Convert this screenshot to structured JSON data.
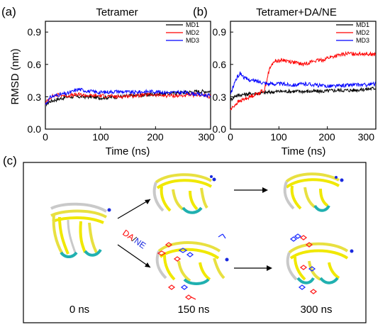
{
  "panels": {
    "a": "(a)",
    "b": "(b)",
    "c": "(c)"
  },
  "colors": {
    "MD1": "#000000",
    "MD2": "#ff0000",
    "MD3": "#0000ff"
  },
  "chart_data": [
    {
      "type": "line",
      "title": "Tetramer",
      "xlabel": "Time (ns)",
      "ylabel": "RMSD (nm)",
      "xlim": [
        0,
        300
      ],
      "ylim": [
        0.0,
        1.0
      ],
      "xticks": [
        "0",
        "100",
        "200",
        "300"
      ],
      "yticks": [
        "0.0",
        "0.3",
        "0.6",
        "0.9"
      ],
      "grid": false,
      "legend_position": "top-right",
      "series": [
        {
          "name": "MD1",
          "x": [
            0,
            10,
            25,
            40,
            60,
            80,
            100,
            130,
            160,
            190,
            220,
            250,
            280,
            300
          ],
          "values": [
            0.23,
            0.26,
            0.28,
            0.3,
            0.3,
            0.3,
            0.29,
            0.3,
            0.31,
            0.32,
            0.33,
            0.34,
            0.35,
            0.35
          ]
        },
        {
          "name": "MD2",
          "x": [
            0,
            10,
            25,
            40,
            60,
            80,
            100,
            130,
            160,
            190,
            220,
            250,
            280,
            300
          ],
          "values": [
            0.24,
            0.3,
            0.32,
            0.31,
            0.32,
            0.31,
            0.31,
            0.3,
            0.31,
            0.32,
            0.31,
            0.31,
            0.32,
            0.3
          ]
        },
        {
          "name": "MD3",
          "x": [
            0,
            10,
            25,
            40,
            60,
            80,
            100,
            130,
            160,
            190,
            220,
            250,
            280,
            300
          ],
          "values": [
            0.23,
            0.3,
            0.32,
            0.33,
            0.37,
            0.35,
            0.34,
            0.35,
            0.34,
            0.35,
            0.34,
            0.34,
            0.32,
            0.31
          ]
        }
      ]
    },
    {
      "type": "line",
      "title": "Tetramer+DA/NE",
      "xlabel": "Time (ns)",
      "ylabel": "",
      "xlim": [
        0,
        300
      ],
      "ylim": [
        0.0,
        1.0
      ],
      "xticks": [
        "0",
        "100",
        "200",
        "300"
      ],
      "yticks": [
        "0.0",
        "0.3",
        "0.6",
        "0.9"
      ],
      "grid": false,
      "legend_position": "top-right",
      "series": [
        {
          "name": "MD1",
          "x": [
            0,
            10,
            25,
            50,
            75,
            100,
            130,
            160,
            190,
            220,
            250,
            280,
            300
          ],
          "values": [
            0.27,
            0.31,
            0.32,
            0.33,
            0.34,
            0.35,
            0.35,
            0.35,
            0.35,
            0.36,
            0.36,
            0.37,
            0.38
          ]
        },
        {
          "name": "MD2",
          "x": [
            0,
            15,
            30,
            50,
            70,
            80,
            90,
            110,
            130,
            150,
            170,
            190,
            200,
            220,
            240,
            260,
            280,
            300
          ],
          "values": [
            0.18,
            0.25,
            0.28,
            0.32,
            0.36,
            0.55,
            0.63,
            0.64,
            0.62,
            0.6,
            0.63,
            0.64,
            0.66,
            0.68,
            0.7,
            0.7,
            0.7,
            0.69
          ]
        },
        {
          "name": "MD3",
          "x": [
            0,
            10,
            20,
            30,
            45,
            60,
            80,
            100,
            130,
            160,
            190,
            220,
            250,
            280,
            300
          ],
          "values": [
            0.32,
            0.45,
            0.52,
            0.47,
            0.45,
            0.44,
            0.42,
            0.42,
            0.41,
            0.42,
            0.4,
            0.4,
            0.41,
            0.41,
            0.42
          ]
        }
      ]
    }
  ],
  "panel_c": {
    "arrow_label_part1": "DA",
    "arrow_label_sep": "/",
    "arrow_label_part2": "NE",
    "times": [
      "0 ns",
      "150 ns",
      "300 ns"
    ]
  }
}
